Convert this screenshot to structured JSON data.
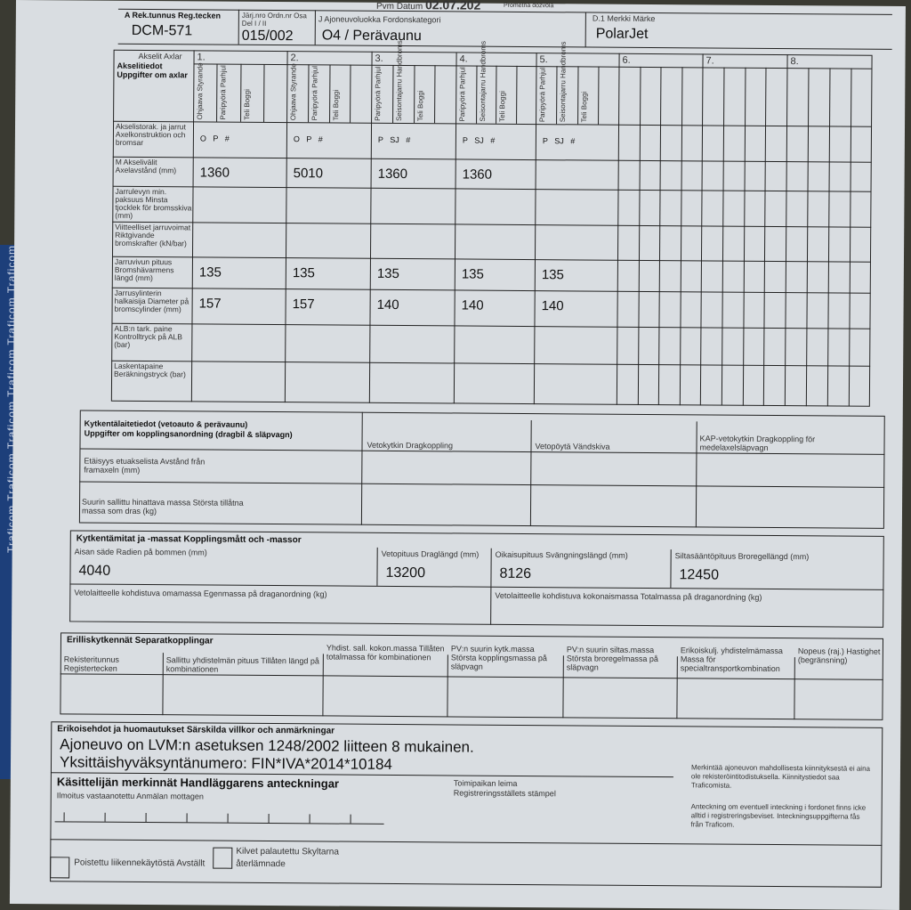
{
  "strip_text": "Traficom Traficom Traficom Traficom Traficom Traficom",
  "header": {
    "date_label": "Pvm Datum",
    "date_value": "02.07.202",
    "top_small": "Prometna dozvola",
    "reg_label": "A Rek.tunnus Reg.tecken",
    "reg_value": "DCM-571",
    "ordn_label": "Järj.nro Ordn.nr Osa Del I / II",
    "ordn_value": "015/002",
    "cat_label": "J Ajoneuvoluokka Fordonskategori",
    "cat_value": "O4 / Perävaunu",
    "make_label": "D.1 Merkki Märke",
    "make_value": "PolarJet"
  },
  "axles": {
    "axles_label": "Akselit Axlar",
    "title": "Akselitiedot Uppgifter om axlar",
    "numbers": [
      "1.",
      "2.",
      "3.",
      "4.",
      "5.",
      "6.",
      "7.",
      "8."
    ],
    "sub_labels_steer": [
      "Ohjaava Styrande",
      "Paripyörä Parhjul",
      "Teli Boggi"
    ],
    "sub_labels_park": [
      "Paripyörä Parhjul",
      "Seisontajarru Handbroms",
      "Teli Boggi"
    ],
    "rows": [
      {
        "label": "Akselistorak. ja jarrut Axelkonstruktion och bromsar",
        "values": [
          "O   P   #",
          "O   P   #",
          "P   SJ   #",
          "P   SJ   #",
          "P   SJ   #",
          "",
          "",
          ""
        ]
      },
      {
        "label": "M Akselivälit Axelavstånd (mm)",
        "values": [
          "1360",
          "5010",
          "1360",
          "1360",
          "",
          "",
          "",
          ""
        ]
      },
      {
        "label": "Jarrulevyn min. paksuus Minsta tjocklek för bromsskiva (mm)",
        "values": [
          "",
          "",
          "",
          "",
          "",
          "",
          "",
          ""
        ]
      },
      {
        "label": "Viitteelliset jarruvoimat Riktgivande bromskrafter (kN/bar)",
        "values": [
          "",
          "",
          "",
          "",
          "",
          "",
          "",
          ""
        ]
      },
      {
        "label": "Jarruvivun pituus Bromshävarmens längd (mm)",
        "values": [
          "135",
          "135",
          "135",
          "135",
          "135",
          "",
          "",
          ""
        ]
      },
      {
        "label": "Jarrusylinterin halkaisija Diameter på bromscylinder (mm)",
        "values": [
          "157",
          "157",
          "140",
          "140",
          "140",
          "",
          "",
          ""
        ]
      },
      {
        "label": "ALB:n tark. paine Kontrolltryck på ALB (bar)",
        "values": [
          "",
          "",
          "",
          "",
          "",
          "",
          "",
          ""
        ]
      },
      {
        "label": "Laskentapaine Beräkningstryck (bar)",
        "values": [
          "",
          "",
          "",
          "",
          "",
          "",
          "",
          ""
        ]
      }
    ]
  },
  "coupling": {
    "title1": "Kytkentälaitetiedot (vetoauto & perävaunu)",
    "title2": "Uppgifter om kopplingsanordning (dragbil & släpvagn)",
    "col1": "Vetokytkin Dragkoppling",
    "col2": "Vetopöytä Vändskiva",
    "col3": "KAP-vetokytkin Dragkoppling för medelaxelsläpvagn",
    "row1": "Etäisyys etuakselista Avstånd från framaxeln (mm)",
    "row2": "Suurin sallittu hinattava massa Största tillåtna massa som dras (kg)"
  },
  "dims": {
    "title": "Kytkentämitat ja -massat Kopplingsmått och -massor",
    "fields": [
      {
        "label": "Aisan säde Radien på bommen (mm)",
        "value": "4040"
      },
      {
        "label": "Vetopituus Draglängd (mm)",
        "value": "13200"
      },
      {
        "label": "Oikaisupituus Svängningslängd (mm)",
        "value": "8126"
      },
      {
        "label": "Siltasääntöpituus Broregellängd (mm)",
        "value": "12450"
      }
    ],
    "own_mass": "Vetolaitteelle kohdistuva omamassa Egenmassa på draganordning (kg)",
    "total_mass": "Vetolaitteelle kohdistuva kokonaismassa Totalmassa på draganordning (kg)"
  },
  "separate": {
    "title": "Erilliskytkennät Separatkopplingar",
    "cols": [
      "Rekisteritunnus Registertecken",
      "Sallittu yhdistelmän pituus Tillåten längd på kombinationen",
      "Yhdist. sall. kokon.massa Tillåten totalmassa för kombinationen",
      "PV:n suurin kytk.massa Största kopplingsmassa på släpvagn",
      "PV:n suurin siltas.massa Största broregelmassa på släpvagn",
      "Erikoiskulj. yhdistelmämassa Massa för specialtransportkombination",
      "Nopeus (raj.) Hastighet (begränsning)"
    ]
  },
  "remarks": {
    "title": "Erikoisehdot ja huomautukset Särskilda villkor och anmärkningar",
    "line1": "Ajoneuvo on LVM:n asetuksen 1248/2002 liitteen 8 mukainen.",
    "line2": "Yksittäishyväksyntänumero: FIN*IVA*2014*10184"
  },
  "handler": {
    "title": "Käsittelijän merkinnät Handläggarens anteckningar",
    "received": "Ilmoitus vastaanotettu Anmälan mottagen",
    "stamp1": "Toimipaikan leima",
    "stamp2": "Registreringsställets stämpel",
    "note_fi": "Merkintää ajoneuvon mahdollisesta kiinnityksestä ei aina ole rekisteröintitodistuksella. Kiinnitystiedot saa Traficomista.",
    "note_sv": "Anteckning om eventuell inteckning i fordonet finns icke alltid i registreringsbeviset. Inteckningsuppgifterna fås från Traficom.",
    "cb1": "Poistettu liikennekäytöstä Avställt",
    "cb2": "Kilvet palautettu Skyltarna återlämnade"
  }
}
